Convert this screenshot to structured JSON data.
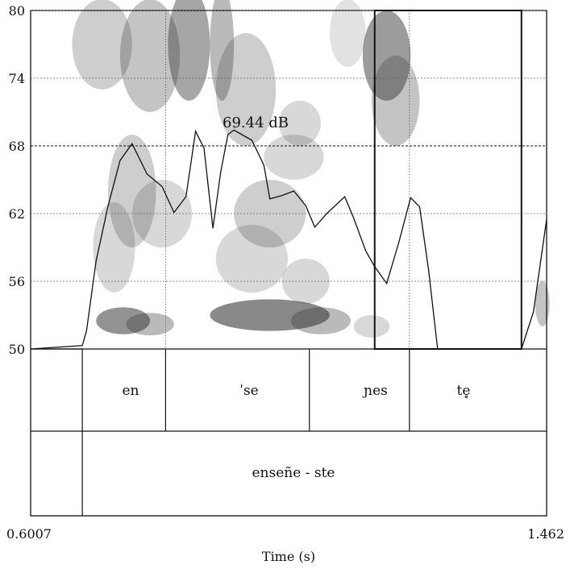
{
  "window": {
    "title": ""
  },
  "y_axis": {
    "ticks": [
      "80",
      "74",
      "68",
      "62",
      "56",
      "50"
    ]
  },
  "x_axis": {
    "start": "0.6007",
    "end": "1.462",
    "label": "Time (s)"
  },
  "intensity_readout": "69.44 dB",
  "tiers": {
    "syllables": [
      "en",
      "ˈse",
      "ɲes",
      "te̥"
    ],
    "words": [
      "enseñe - ste"
    ]
  },
  "selection": {
    "start_time": 1.175,
    "end_time": 1.42
  },
  "cursor": {
    "time": 0.905,
    "value_db": 68
  },
  "chart_data": {
    "type": "line",
    "title": "",
    "xlabel": "Time (s)",
    "ylabel": "",
    "xlim": [
      0.6007,
      1.462
    ],
    "ylim": [
      50,
      80
    ],
    "series": [
      {
        "x": [
          0.6007,
          0.687,
          0.694,
          0.71,
          0.73,
          0.75,
          0.77,
          0.795,
          0.82,
          0.84,
          0.86,
          0.876,
          0.89,
          0.905,
          0.918,
          0.93,
          0.94,
          0.97,
          0.99,
          1.0,
          1.02,
          1.04,
          1.06,
          1.075,
          1.095,
          1.115,
          1.125,
          1.14,
          1.16,
          1.175,
          1.195,
          1.215,
          1.235,
          1.25,
          1.265,
          1.28,
          1.305,
          1.345,
          1.39,
          1.42,
          1.44,
          1.462
        ],
        "y": [
          50,
          50.3,
          51.6,
          57.8,
          62.7,
          66.7,
          68.2,
          65.5,
          64.4,
          62.1,
          63.5,
          69.3,
          67.8,
          60.7,
          65.7,
          69.0,
          69.4,
          68.5,
          66.3,
          63.3,
          63.6,
          64.0,
          62.7,
          60.8,
          62.0,
          63.0,
          63.5,
          61.6,
          58.7,
          57.3,
          55.8,
          59.4,
          63.4,
          62.6,
          57.0,
          50,
          50,
          50,
          50,
          50,
          53.3,
          61.5
        ]
      }
    ]
  }
}
